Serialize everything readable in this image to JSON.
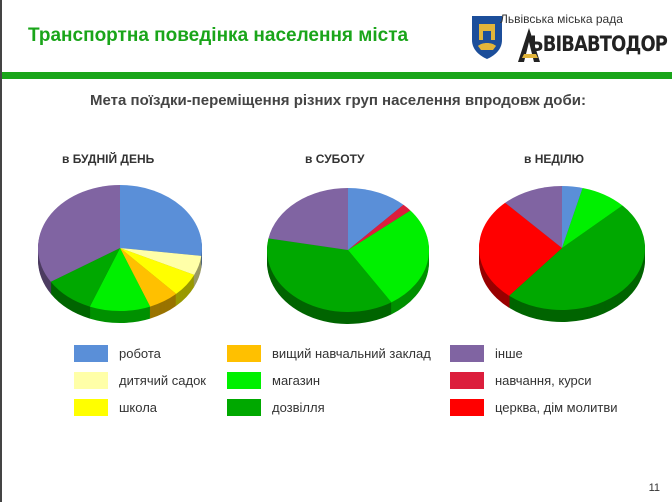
{
  "header": {
    "title": "Транспортна поведінка населення міста",
    "org": "Львівська міська рада",
    "brand": "ЬВІВАВТОДОР",
    "brand_logo_text": "ЛЬВІВАВТОДОР"
  },
  "subtitle": "Мета поїздки-переміщення різних груп населення впродовж доби:",
  "page_number": "11",
  "chart_data": {
    "type": "pie",
    "categories": [
      "робота",
      "дитячий садок",
      "школа",
      "вищий навчальний заклад",
      "магазин",
      "дозвілля",
      "інше",
      "навчання, курси",
      "церква, дім молитви"
    ],
    "colors": {
      "робота": "#5a8fd8",
      "дитячий садок": "#ffffa8",
      "школа": "#ffff00",
      "вищий навчальний заклад": "#ffc000",
      "магазин": "#00f000",
      "дозвілля": "#00a800",
      "інше": "#8064a2",
      "навчання, курси": "#dc1e3c",
      "церква, дім молитви": "#ff0000"
    },
    "charts": [
      {
        "title": "в БУДНІЙ ДЕНЬ",
        "slices": [
          [
            "робота",
            27
          ],
          [
            "дитячий садок",
            5
          ],
          [
            "школа",
            6
          ],
          [
            "вищий навчальний заклад",
            6
          ],
          [
            "магазин",
            12
          ],
          [
            "дозвілля",
            10
          ],
          [
            "інше",
            34
          ]
        ]
      },
      {
        "title": "в СУБОТУ",
        "slices": [
          [
            "робота",
            12
          ],
          [
            "навчання, курси",
            2
          ],
          [
            "магазин",
            27
          ],
          [
            "дозвілля",
            37
          ],
          [
            "інше",
            22
          ]
        ]
      },
      {
        "title": "в НЕДІЛЮ",
        "slices": [
          [
            "робота",
            4
          ],
          [
            "магазин",
            9
          ],
          [
            "дозвілля",
            48
          ],
          [
            "церква, дім молитви",
            27
          ],
          [
            "інше",
            12
          ]
        ]
      }
    ],
    "legend": [
      [
        "робота",
        "дитячий садок",
        "школа"
      ],
      [
        "вищий навчальний заклад",
        "магазин",
        "дозвілля"
      ],
      [
        "інше",
        "навчання, курси",
        "церква, дім молитви"
      ]
    ]
  }
}
